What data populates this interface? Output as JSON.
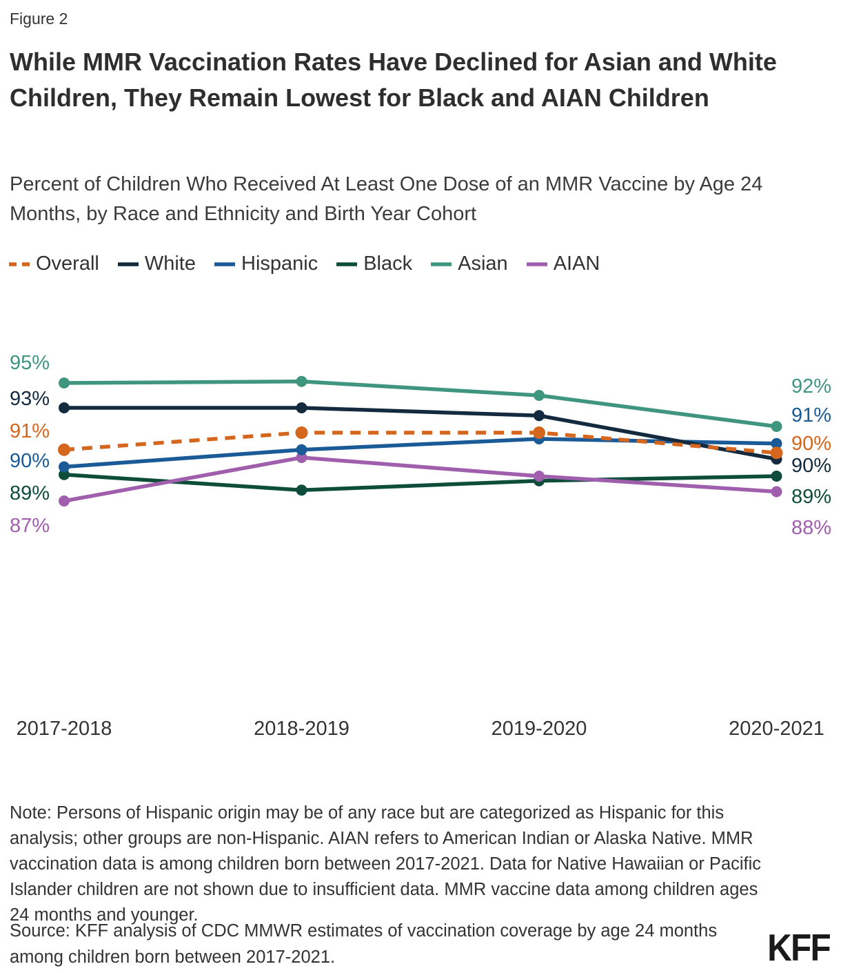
{
  "figure_label": "Figure 2",
  "title": "While MMR Vaccination Rates Have Declined for Asian and White Children, They Remain Lowest for Black and AIAN Children",
  "subtitle": "Percent of Children Who Received At Least One Dose of an MMR Vaccine by Age 24 Months, by Race and Ethnicity and Birth Year Cohort",
  "chart_data": {
    "type": "line",
    "categories": [
      "2017-2018",
      "2018-2019",
      "2019-2020",
      "2020-2021"
    ],
    "x_axis_label": "",
    "y_axis_label": "",
    "value_suffix": "%",
    "ylim": [
      83,
      96
    ],
    "grid": false,
    "legend_position": "top",
    "series": [
      {
        "name": "Overall",
        "color": "#d4661d",
        "style": "dashed",
        "values": [
          90.7,
          91.8,
          91.8,
          90.5
        ],
        "start_label": "91%",
        "end_label": "90%"
      },
      {
        "name": "White",
        "color": "#142a3e",
        "style": "solid",
        "values": [
          93.4,
          93.4,
          92.9,
          90.1
        ],
        "start_label": "93%",
        "end_label": "90%"
      },
      {
        "name": "Hispanic",
        "color": "#1a5a96",
        "style": "solid",
        "values": [
          89.6,
          90.7,
          91.4,
          91.1
        ],
        "start_label": "90%",
        "end_label": "91%"
      },
      {
        "name": "Black",
        "color": "#0e4d3a",
        "style": "solid",
        "values": [
          89.1,
          88.1,
          88.7,
          89.0
        ],
        "start_label": "89%",
        "end_label": "89%"
      },
      {
        "name": "Asian",
        "color": "#40957f",
        "style": "solid",
        "values": [
          95.0,
          95.1,
          94.2,
          92.2
        ],
        "start_label": "95%",
        "end_label": "92%"
      },
      {
        "name": "AIAN",
        "color": "#a05fad",
        "style": "solid",
        "values": [
          87.4,
          90.2,
          89.0,
          88.0
        ],
        "start_label": "87%",
        "end_label": "88%"
      }
    ]
  },
  "note": "Note: Persons of Hispanic origin may be of any race but are categorized as Hispanic for this analysis; other groups are non-Hispanic. AIAN refers to American Indian or Alaska Native. MMR vaccination data is among children born between 2017-2021. Data for Native Hawaiian or Pacific Islander children are not shown due to insufficient data. MMR vaccine data among children ages 24 months and younger.",
  "source": "Source: KFF analysis of CDC MMWR estimates of vaccination coverage by age 24 months among children born between 2017-2021.",
  "logo_text": "KFF"
}
